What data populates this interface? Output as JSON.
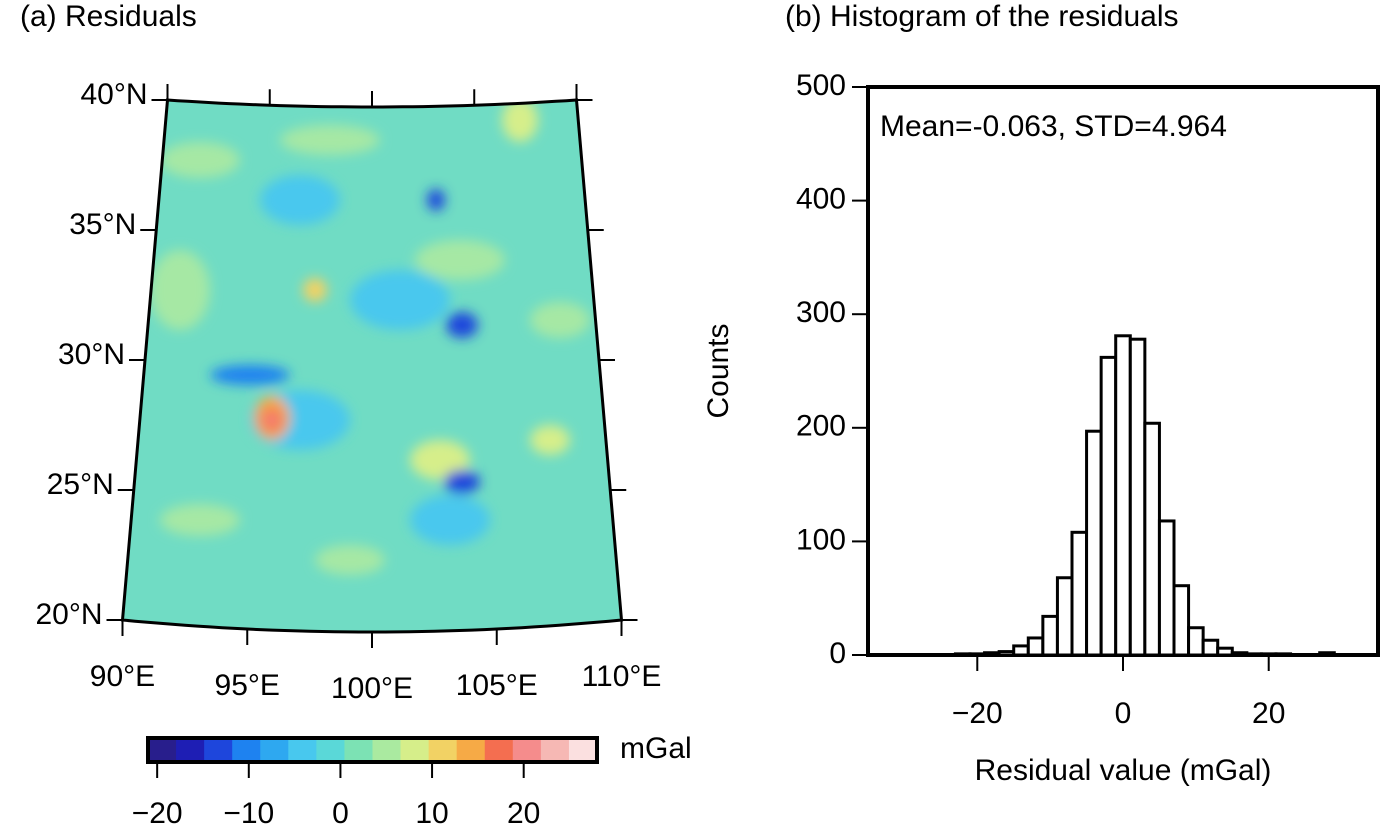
{
  "chart_data": [
    {
      "type": "map",
      "title": "(a) Residuals",
      "xlim": [
        90,
        110
      ],
      "ylim": [
        20,
        40
      ],
      "xticks": [
        {
          "value": 90,
          "label": "90°E"
        },
        {
          "value": 95,
          "label": "95°E"
        },
        {
          "value": 100,
          "label": "100°E"
        },
        {
          "value": 105,
          "label": "105°E"
        },
        {
          "value": 110,
          "label": "110°E"
        }
      ],
      "yticks": [
        {
          "value": 20,
          "label": "20°N"
        },
        {
          "value": 25,
          "label": "25°N"
        },
        {
          "value": 30,
          "label": "30°N"
        },
        {
          "value": 35,
          "label": "35°N"
        },
        {
          "value": 40,
          "label": "40°N"
        }
      ],
      "colorbar": {
        "label": "mGal",
        "lim": [
          -21,
          28
        ],
        "ticks": [
          {
            "value": -20,
            "label": "−20"
          },
          {
            "value": -10,
            "label": "−10"
          },
          0,
          10,
          20
        ],
        "colors": [
          "#281e8c",
          "#1e1eb4",
          "#1e46dc",
          "#1e82f0",
          "#2ea8f0",
          "#48c8ee",
          "#5ad8d8",
          "#7ce2b4",
          "#aaeaa0",
          "#d6ee8a",
          "#f2d264",
          "#f6aa46",
          "#f46e50",
          "#f58c8c",
          "#f6b8b4",
          "#fbe0e0"
        ]
      }
    },
    {
      "type": "histogram",
      "title": "(b) Histogram of the residuals",
      "annotation": "Mean=-0.063, STD=4.964",
      "xlabel": "Residual value (mGal)",
      "ylabel": "Counts",
      "color": "#ffffff",
      "bins": [
        -23,
        -21,
        -19,
        -17,
        -15,
        -13,
        -11,
        -9,
        -7,
        -5,
        -3,
        -1,
        1,
        3,
        5,
        7,
        9,
        11,
        13,
        15,
        17,
        19,
        21,
        23,
        25,
        27,
        29
      ],
      "values": [
        1,
        1,
        2,
        3,
        8,
        15,
        34,
        68,
        108,
        197,
        262,
        281,
        278,
        204,
        118,
        61,
        24,
        13,
        6,
        2,
        1,
        1,
        1,
        0,
        0,
        2
      ],
      "xlim": [
        -35,
        35
      ],
      "ylim": [
        0,
        500
      ],
      "xticks": [
        {
          "value": -20,
          "label": "−20"
        },
        0,
        20
      ],
      "yticks": [
        0,
        100,
        200,
        300,
        400,
        500
      ]
    }
  ]
}
